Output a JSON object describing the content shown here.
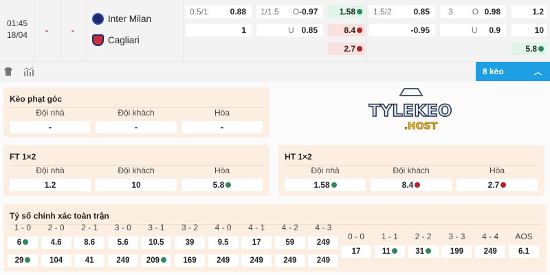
{
  "match": {
    "time": "01:45",
    "date": "18/04",
    "score_home": "-",
    "score_away": "-",
    "home": "Inter Milan",
    "away": "Cagliari"
  },
  "odds": {
    "hdp_ft": {
      "line": "0.5/1",
      "home": "0.88",
      "away": "1"
    },
    "ou_ft": {
      "line": "1/1.5",
      "o": "O",
      "u": "U",
      "over": "-0.97",
      "under": "0.85"
    },
    "x12_ht": {
      "home": "1.58",
      "away": "8.4",
      "draw": "2.7"
    },
    "hdp_ht": {
      "line": "1.5/2",
      "home": "0.85",
      "away": "-0.95"
    },
    "ou_ht": {
      "line": "3",
      "o": "O",
      "u": "U",
      "over": "0.98",
      "under": "0.9"
    },
    "x12_ft": {
      "home": "1.2",
      "away": "10",
      "draw": "5.8"
    }
  },
  "colors": {
    "accent": "#1e9fe3",
    "up": "#2f8a5b",
    "down": "#b5222a"
  },
  "toolbar": {
    "more_label": "8 kèo",
    "icons": [
      "shirt-icon",
      "stats-icon"
    ]
  },
  "labels": {
    "home": "Đội nhà",
    "away": "Đội khách",
    "draw": "Hòa"
  },
  "corner": {
    "title": "Kèo phạt góc",
    "home": "-",
    "away": "-",
    "draw": "-"
  },
  "ft": {
    "title": "FT 1×2",
    "home": "1.2",
    "away": "10",
    "draw": "5.8"
  },
  "ht": {
    "title": "HT 1×2",
    "home": "1.58",
    "away": "8.4",
    "draw": "2.7"
  },
  "logo_text": "TYLEKEO .HOST",
  "correct_score": {
    "title": "Tỷ số chính xác toàn trận",
    "headers": [
      "1 - 0",
      "2 - 0",
      "2 - 1",
      "3 - 0",
      "3 - 1",
      "3 - 2",
      "4 - 0",
      "4 - 1",
      "4 - 2",
      "4 - 3"
    ],
    "row1": [
      "6",
      "4.6",
      "8.6",
      "5.6",
      "10.5",
      "39",
      "9.5",
      "17",
      "59",
      "249"
    ],
    "row2": [
      "29",
      "104",
      "41",
      "249",
      "209",
      "169",
      "249",
      "249",
      "249",
      "249"
    ],
    "draw_headers": [
      "0 - 0",
      "1 - 1",
      "2 - 2",
      "3 - 3",
      "4 - 4",
      "AOS"
    ],
    "draw_values": [
      "17",
      "11",
      "31",
      "199",
      "249",
      "6.1"
    ]
  }
}
